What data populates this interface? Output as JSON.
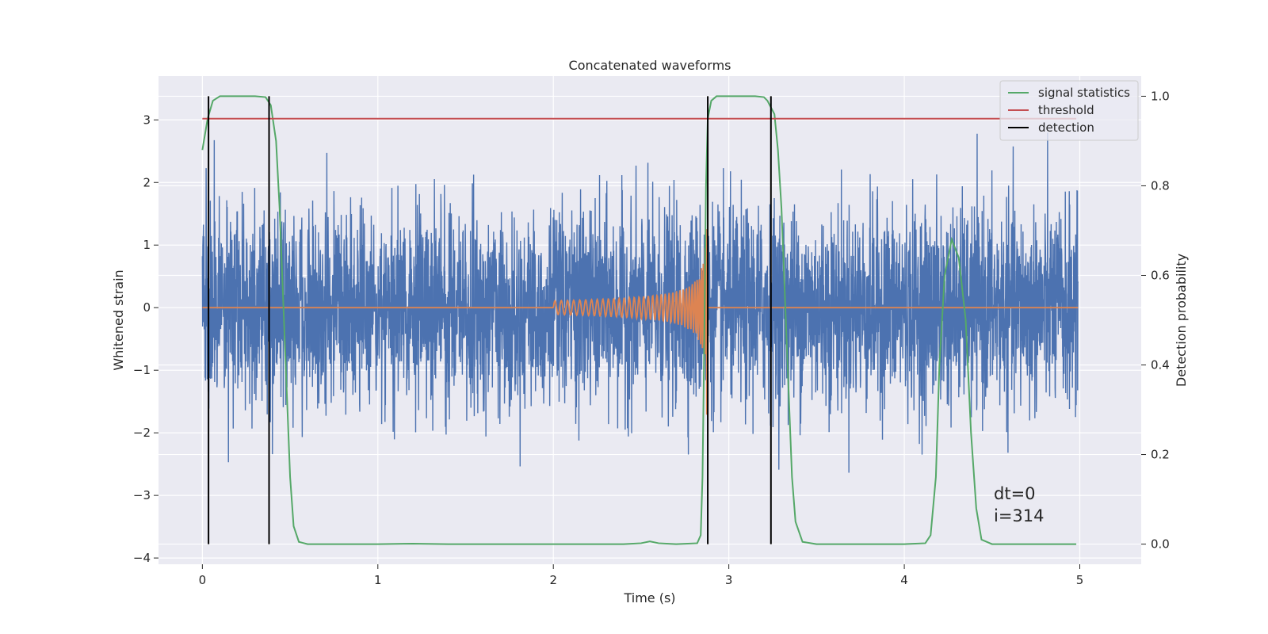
{
  "chart_data": {
    "type": "line",
    "title": "Concatenated waveforms",
    "xlabel": "Time (s)",
    "ylabel": "Whitened strain",
    "y2label": "Detection probability",
    "xlim": [
      -0.25,
      5.35
    ],
    "ylim": [
      -4.1,
      3.7
    ],
    "y2lim": [
      -0.045,
      1.045
    ],
    "x_ticks": [
      0,
      1,
      2,
      3,
      4,
      5
    ],
    "y_ticks": [
      -4,
      -3,
      -2,
      -1,
      0,
      1,
      2,
      3
    ],
    "y2_ticks": [
      0.0,
      0.2,
      0.4,
      0.6,
      0.8,
      1.0
    ],
    "x_tick_labels": [
      "0",
      "1",
      "2",
      "3",
      "4",
      "5"
    ],
    "y_tick_labels": [
      "−4",
      "−3",
      "−2",
      "−1",
      "0",
      "1",
      "2",
      "3"
    ],
    "y2_tick_labels": [
      "0.0",
      "0.2",
      "0.4",
      "0.6",
      "0.8",
      "1.0"
    ],
    "grid": true,
    "legend_position": "top-right",
    "colors": {
      "strain": "#4c72b0",
      "waveform": "#dd8452",
      "signal_statistics": "#55a868",
      "threshold": "#c44e52",
      "detection": "#000000",
      "background": "#eaeaf2",
      "grid": "#ffffff"
    },
    "series": [
      {
        "name": "signal statistics",
        "axis": "right",
        "points": [
          [
            0.0,
            0.88
          ],
          [
            0.03,
            0.95
          ],
          [
            0.06,
            0.99
          ],
          [
            0.1,
            1.0
          ],
          [
            0.2,
            1.0
          ],
          [
            0.3,
            1.0
          ],
          [
            0.36,
            0.998
          ],
          [
            0.39,
            0.98
          ],
          [
            0.42,
            0.9
          ],
          [
            0.44,
            0.75
          ],
          [
            0.46,
            0.55
          ],
          [
            0.48,
            0.35
          ],
          [
            0.5,
            0.15
          ],
          [
            0.52,
            0.04
          ],
          [
            0.55,
            0.005
          ],
          [
            0.6,
            0.0
          ],
          [
            1.0,
            0.0
          ],
          [
            1.2,
            0.001
          ],
          [
            1.4,
            0.0
          ],
          [
            2.0,
            0.0
          ],
          [
            2.4,
            0.0
          ],
          [
            2.5,
            0.002
          ],
          [
            2.55,
            0.006
          ],
          [
            2.6,
            0.002
          ],
          [
            2.7,
            0.0
          ],
          [
            2.82,
            0.002
          ],
          [
            2.84,
            0.02
          ],
          [
            2.85,
            0.15
          ],
          [
            2.86,
            0.45
          ],
          [
            2.87,
            0.8
          ],
          [
            2.88,
            0.95
          ],
          [
            2.9,
            0.99
          ],
          [
            2.93,
            1.0
          ],
          [
            3.15,
            1.0
          ],
          [
            3.2,
            0.998
          ],
          [
            3.22,
            0.99
          ],
          [
            3.26,
            0.96
          ],
          [
            3.28,
            0.88
          ],
          [
            3.3,
            0.75
          ],
          [
            3.32,
            0.55
          ],
          [
            3.34,
            0.35
          ],
          [
            3.36,
            0.15
          ],
          [
            3.38,
            0.05
          ],
          [
            3.42,
            0.005
          ],
          [
            3.5,
            0.0
          ],
          [
            4.0,
            0.0
          ],
          [
            4.12,
            0.002
          ],
          [
            4.15,
            0.02
          ],
          [
            4.18,
            0.15
          ],
          [
            4.2,
            0.4
          ],
          [
            4.23,
            0.6
          ],
          [
            4.27,
            0.68
          ],
          [
            4.31,
            0.64
          ],
          [
            4.35,
            0.5
          ],
          [
            4.38,
            0.25
          ],
          [
            4.41,
            0.08
          ],
          [
            4.44,
            0.01
          ],
          [
            4.5,
            0.0
          ],
          [
            4.98,
            0.0
          ]
        ]
      },
      {
        "name": "threshold",
        "axis": "right",
        "points": [
          [
            0.0,
            0.95
          ],
          [
            4.98,
            0.95
          ]
        ]
      },
      {
        "name": "detection",
        "axis": "right",
        "vertical_lines_x": [
          0.035,
          0.38,
          2.88,
          3.24
        ],
        "range": [
          0.0,
          1.0
        ]
      }
    ],
    "annotations": [
      "dt=0",
      "i=314"
    ]
  }
}
